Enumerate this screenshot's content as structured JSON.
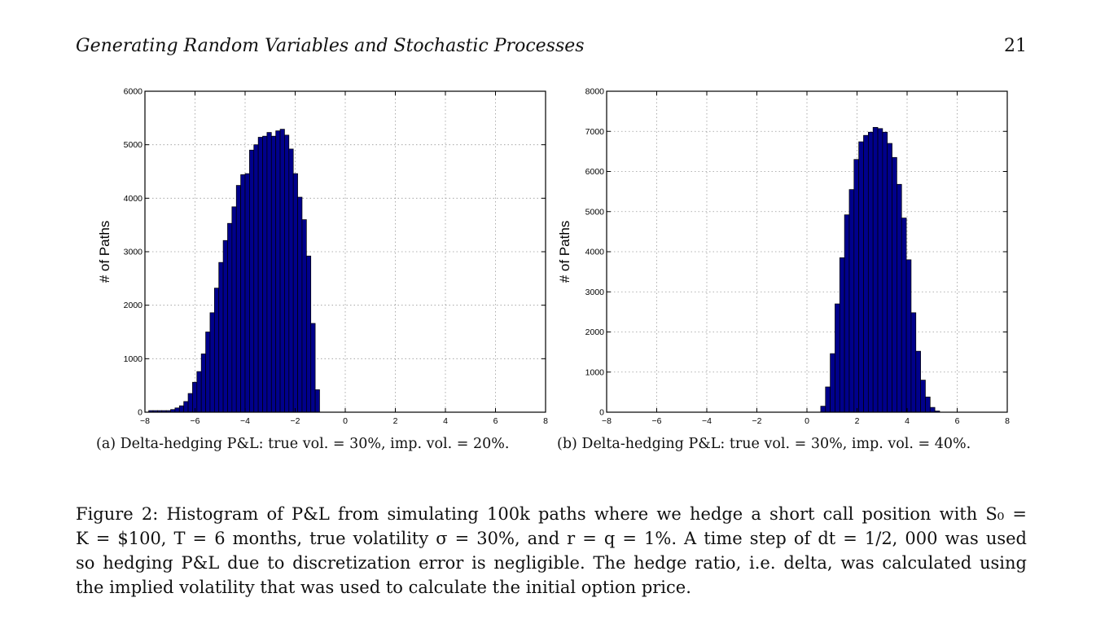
{
  "header": {
    "title": "Generating Random Variables and Stochastic Processes",
    "page_number": "21"
  },
  "subfigures": [
    {
      "caption": "(a) Delta-hedging P&L: true vol. = 30%, imp. vol. = 20%."
    },
    {
      "caption": "(b) Delta-hedging P&L: true vol. = 30%, imp. vol. = 40%."
    }
  ],
  "figure_caption": {
    "lines": [
      "Figure 2: Histogram of P&L from simulating 100k paths where we hedge a short call position with S₀ =",
      "K = $100, T = 6 months, true volatility σ = 30%, and r = q = 1%. A time step of dt = 1/2, 000 was used",
      "so hedging P&L due to discretization error is negligible. The hedge ratio, i.e. delta, was calculated using",
      "the implied volatility that was used to calculate the initial option price."
    ]
  },
  "chart_data": [
    {
      "type": "bar",
      "xlabel": "",
      "ylabel": "# of Paths",
      "xlim": [
        -8,
        8
      ],
      "ylim": [
        0,
        6000
      ],
      "xticks": [
        -8,
        -6,
        -4,
        -2,
        0,
        2,
        4,
        6,
        8
      ],
      "yticks": [
        0,
        1000,
        2000,
        3000,
        4000,
        5000,
        6000
      ],
      "grid": true,
      "bar_color": "#00008b",
      "bin_start": -7.85,
      "bin_width": 0.175,
      "values": [
        30,
        30,
        30,
        30,
        30,
        50,
        80,
        120,
        200,
        350,
        560,
        760,
        1090,
        1500,
        1860,
        2320,
        2800,
        3210,
        3530,
        3840,
        4240,
        4440,
        4460,
        4900,
        5000,
        5140,
        5160,
        5230,
        5160,
        5260,
        5290,
        5180,
        4920,
        4460,
        4020,
        3600,
        2920,
        1660,
        420
      ]
    },
    {
      "type": "bar",
      "xlabel": "",
      "ylabel": "# of Paths",
      "xlim": [
        -8,
        8
      ],
      "ylim": [
        0,
        8000
      ],
      "xticks": [
        -8,
        -6,
        -4,
        -2,
        0,
        2,
        4,
        6,
        8
      ],
      "yticks": [
        0,
        1000,
        2000,
        3000,
        4000,
        5000,
        6000,
        7000,
        8000
      ],
      "grid": true,
      "bar_color": "#00008b",
      "bin_start": 0.55,
      "bin_width": 0.19,
      "values": [
        150,
        630,
        1460,
        2700,
        3850,
        4920,
        5550,
        6300,
        6740,
        6900,
        6980,
        7100,
        7070,
        6980,
        6700,
        6350,
        5680,
        4840,
        3800,
        2480,
        1520,
        800,
        380,
        120,
        30
      ]
    }
  ]
}
